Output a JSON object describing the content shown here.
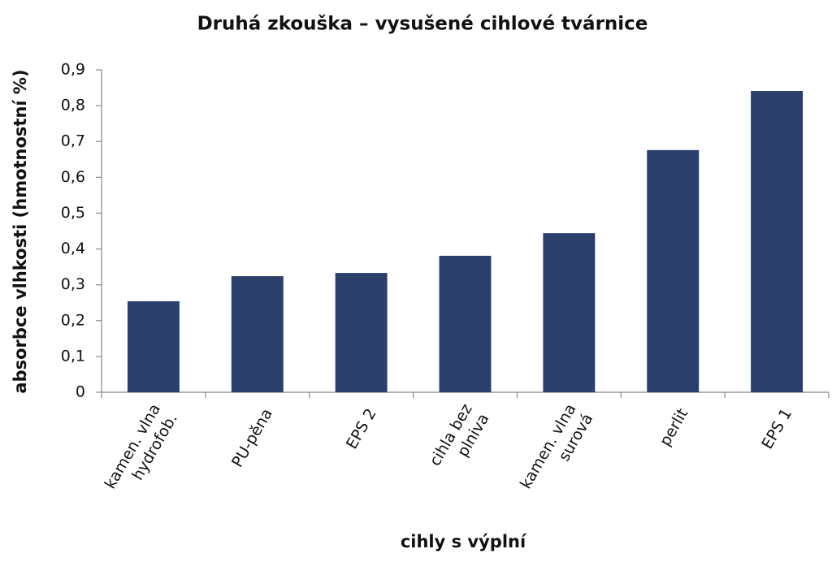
{
  "chart_data": {
    "type": "bar",
    "title": "Druhá zkouška – vysušené cihlové tvárnice",
    "y_label": "absorbce vlhkosti (hmotnostní %)",
    "x_label": "cihly s výplní",
    "categories": [
      "kamen. vlna\nhydrofob.",
      "PU-pěna",
      "EPS 2",
      "cihla bez\nplniva",
      "kamen. vlna\nsurová",
      "perlit",
      "EPS 1"
    ],
    "values": [
      0.254,
      0.324,
      0.333,
      0.381,
      0.444,
      0.676,
      0.841
    ],
    "color": "#2b3f6c",
    "ylim": [
      0,
      0.9
    ],
    "yticks": [
      0,
      {
        "value": 0.1,
        "label": "0,1"
      },
      {
        "value": 0.2,
        "label": "0,2"
      },
      {
        "value": 0.3,
        "label": "0,3"
      },
      {
        "value": 0.4,
        "label": "0,4"
      },
      {
        "value": 0.5,
        "label": "0,5"
      },
      {
        "value": 0.6,
        "label": "0,6"
      },
      {
        "value": 0.7,
        "label": "0,7"
      },
      {
        "value": 0.8,
        "label": "0,8"
      },
      {
        "value": 0.9,
        "label": "0,9"
      }
    ],
    "grid": false
  }
}
